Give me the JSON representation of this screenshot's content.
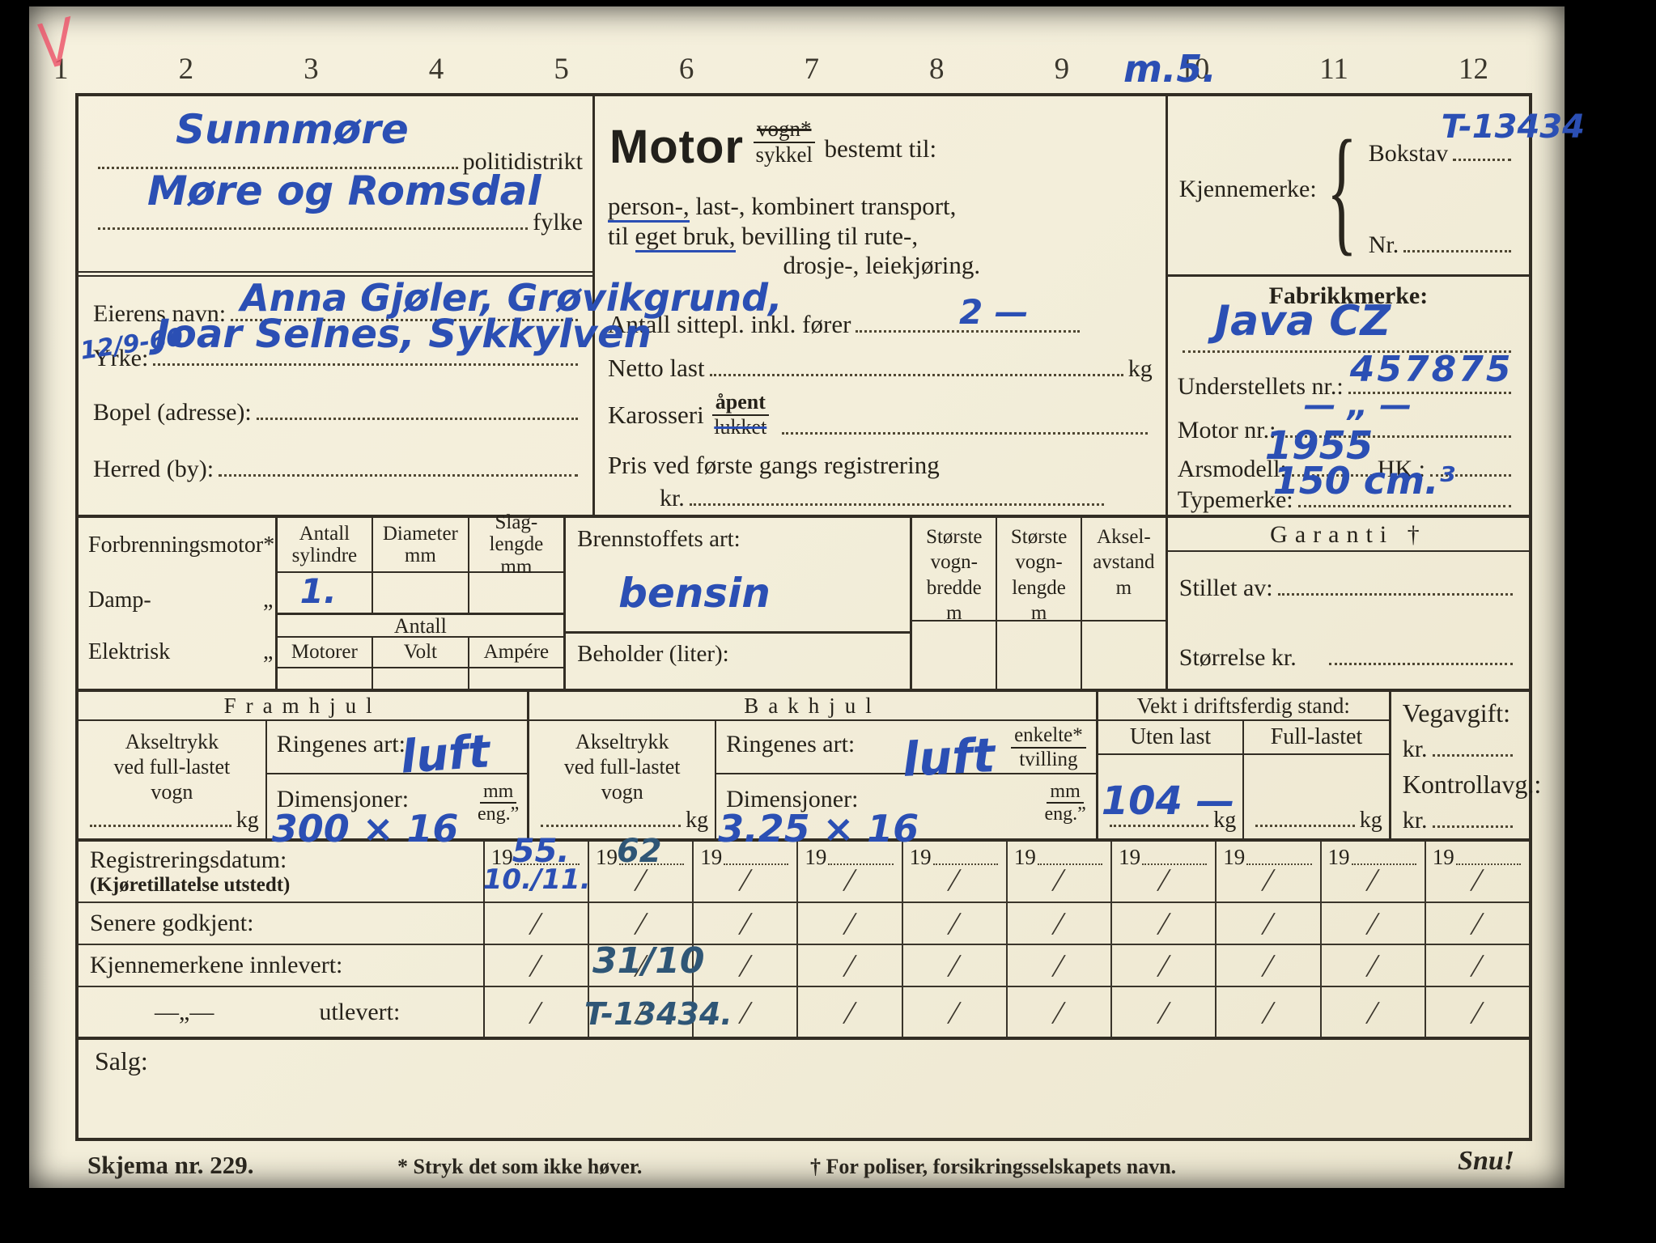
{
  "annotations": {
    "check": "V",
    "top_note": "m.5."
  },
  "ruler": {
    "numbers": [
      "1",
      "2",
      "3",
      "4",
      "5",
      "6",
      "7",
      "8",
      "9",
      "10",
      "11",
      "12"
    ]
  },
  "header": {
    "politidistrikt_hw": "Sunnmøre",
    "politidistrikt_label": "politidistrikt",
    "fylke_hw": "Møre og Romsdal",
    "fylke_label": "fylke",
    "eier_label": "Eierens navn:",
    "eier_hw": "Anna Gjøler, Grøvikgrund,",
    "date_hw": "12/9-60",
    "yrke_label": "Yrke:",
    "yrke_hw": "Joar Selnes, Sykkylven",
    "bopel_label": "Bopel (adresse):",
    "herred_label": "Herred (by):"
  },
  "motor": {
    "title": "Motor",
    "vogn": "vogn*",
    "sykkel": "sykkel",
    "bestemt": "bestemt til:",
    "l1_u": "person-,",
    "l1": " last-, kombinert transport,",
    "l2_pre": "til ",
    "l2_u": "eget bruk,",
    "l2": " bevilling til rute-,",
    "l3": "drosje-, leiekjøring.",
    "seats_label": "Antall sittepl. inkl. fører",
    "seats_hw": "2 —",
    "netto_label": "Netto last",
    "kg": "kg",
    "karosseri_label": "Karosseri",
    "apent": "åpent",
    "lukket": "lukket",
    "pris_label": "Pris ved første gangs registrering",
    "kr": "kr."
  },
  "id_panel": {
    "kjennemerke_label": "Kjennemerke:",
    "brace": "{",
    "bokstav_label": "Bokstav",
    "bokstav_hw": "T-13434",
    "nr_label": "Nr.",
    "fabrikkmerke_label": "Fabrikkmerke:",
    "fabrikkmerke_hw": "Java CZ",
    "understell_label": "Understellets nr.:",
    "understell_hw": "457875",
    "motornr_label": "Motor nr.:",
    "motornr_hw": "— „ —",
    "arsmodell_label": "Arsmodell:",
    "arsmodell_hw": "1955",
    "hk_label": "HK.:",
    "typemerke_label": "Typemerke:",
    "typemerke_hw": "150 cm.³"
  },
  "engine": {
    "main_label": "Forbrenningsmotor*",
    "damp_label": "Damp-",
    "elektrisk_label": "Elektrisk",
    "ditto": "„",
    "cols": [
      "Antall\nsylindre",
      "Diameter\nmm",
      "Slag-\nlengde\nmm"
    ],
    "cylinders_hw": "1.",
    "antall_label": "Antall",
    "sub_cols": [
      "Motorer",
      "Volt",
      "Ampére"
    ]
  },
  "fuel": {
    "label": "Brennstoffets art:",
    "hw": "bensin",
    "beholder_label": "Beholder (liter):"
  },
  "dims": {
    "cols": [
      "Største\nvogn-\nbredde\nm",
      "Største\nvogn-\nlengde\nm",
      "Aksel-\navstand\nm"
    ]
  },
  "garanti": {
    "title": "Garanti †",
    "stillet_label": "Stillet av:",
    "storrelse_label": "Størrelse kr."
  },
  "wheels": {
    "fram_title": "Framhjul",
    "bak_title": "Bakhjul",
    "akseltrykk": "Akseltrykk\nved full-lastet\nvogn",
    "kg": "kg",
    "ringenes_label": "Ringenes art:",
    "fram_ring_hw": "luft",
    "bak_ring_hw": "luft",
    "dim_label": "Dimensjoner:",
    "mm": "mm",
    "eng": "eng.”",
    "enkelte": "enkelte*",
    "tvilling": "tvilling",
    "fram_dim_hw": "300 × 16",
    "bak_dim_hw": "3.25 × 16"
  },
  "vekt": {
    "title": "Vekt i driftsferdig stand:",
    "uten": "Uten last",
    "full": "Full-lastet",
    "uten_hw": "104 —",
    "kg": "kg"
  },
  "avgift": {
    "veg_label": "Vegavgift:",
    "kr": "kr.",
    "kontroll_label": "Kontrollavg.:"
  },
  "registration": {
    "year_prefix": "19",
    "slash_mark": "/",
    "row_labels": {
      "r1": "Registreringsdatum:",
      "r1_sub": "(Kjøretillatelse utstedt)",
      "r2": "Senere godkjent:",
      "r3": "Kjennemerkene innlevert:",
      "r4_dash": "—„—",
      "r4": "utlevert:"
    },
    "columns": [
      {
        "year_hw": "55.",
        "note_hw": "10./11."
      },
      {
        "year_hw": "62",
        "innlevert_hw": "31/10",
        "utlevert_hw": "T-13434."
      },
      {},
      {},
      {},
      {},
      {},
      {},
      {},
      {}
    ]
  },
  "salg": {
    "label": "Salg:"
  },
  "footer": {
    "skjema": "Skjema nr. 229.",
    "note1": "* Stryk det som ikke høver.",
    "note2": "† For poliser, forsikringsselskapets navn.",
    "snu": "Snu!"
  }
}
